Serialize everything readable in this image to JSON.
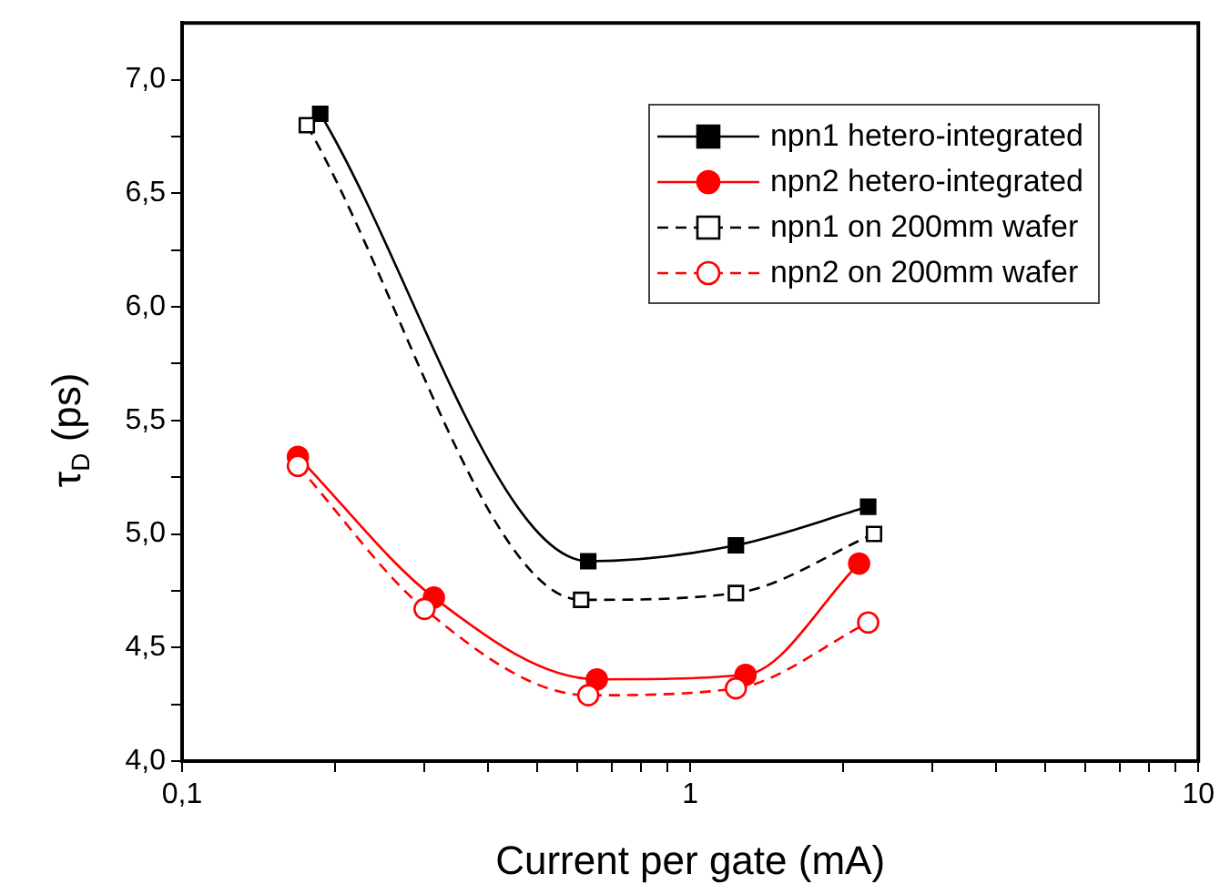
{
  "chart_data": {
    "type": "line",
    "xlabel": "Current per gate (mA)",
    "ylabel": "τ$_{D}$ (ps)",
    "log": "x",
    "xlim": [
      0.1,
      10
    ],
    "ylim": [
      4.0,
      7.25
    ],
    "xticks": [
      {
        "value": 0.1,
        "label": "0,1"
      },
      {
        "value": 0.2,
        "label": null
      },
      {
        "value": 0.3,
        "label": null
      },
      {
        "value": 0.4,
        "label": null
      },
      {
        "value": 0.5,
        "label": null
      },
      {
        "value": 0.6,
        "label": null
      },
      {
        "value": 0.7,
        "label": null
      },
      {
        "value": 0.8,
        "label": null
      },
      {
        "value": 0.9,
        "label": null
      },
      1,
      {
        "value": 2,
        "label": null
      },
      {
        "value": 3,
        "label": null
      },
      {
        "value": 4,
        "label": null
      },
      {
        "value": 5,
        "label": null
      },
      {
        "value": 6,
        "label": null
      },
      {
        "value": 7,
        "label": null
      },
      {
        "value": 8,
        "label": null
      },
      {
        "value": 9,
        "label": null
      },
      10
    ],
    "yticks": [
      {
        "value": 4.0,
        "label": "4,0"
      },
      {
        "value": 4.25,
        "label": null
      },
      {
        "value": 4.5,
        "label": "4,5"
      },
      {
        "value": 4.75,
        "label": null
      },
      {
        "value": 5.0,
        "label": "5,0"
      },
      {
        "value": 5.25,
        "label": null
      },
      {
        "value": 5.5,
        "label": "5,5"
      },
      {
        "value": 5.75,
        "label": null
      },
      {
        "value": 6.0,
        "label": "6,0"
      },
      {
        "value": 6.25,
        "label": null
      },
      {
        "value": 6.5,
        "label": "6,5"
      },
      {
        "value": 6.75,
        "label": null
      },
      {
        "value": 7.0,
        "label": "7,0"
      }
    ],
    "grid": false,
    "legend": "top right",
    "series": [
      {
        "name": "npn1 hetero-integrated",
        "color": "#000000",
        "marker": "square",
        "line_style": "solid",
        "x": [
          0.187,
          0.63,
          1.23,
          2.24
        ],
        "values": [
          6.85,
          4.88,
          4.95,
          5.12
        ]
      },
      {
        "name": "npn2 hetero-integrated",
        "color": "#ff0000",
        "marker": "circle",
        "line_style": "solid",
        "x": [
          0.169,
          0.313,
          0.655,
          1.285,
          2.15
        ],
        "values": [
          5.34,
          4.72,
          4.36,
          4.38,
          4.87
        ]
      },
      {
        "name": "npn1 on 200mm wafer",
        "color": "#000000",
        "marker": "square",
        "line_style": "dashed",
        "x": [
          0.176,
          0.61,
          1.23,
          2.3
        ],
        "values": [
          6.8,
          4.71,
          4.74,
          5.0
        ]
      },
      {
        "name": "npn2 on 200mm wafer",
        "color": "#ff0000",
        "marker": "circle",
        "line_style": "dashed",
        "x": [
          0.169,
          0.3,
          0.63,
          1.23,
          2.24
        ],
        "values": [
          5.3,
          4.67,
          4.29,
          4.32,
          4.61
        ]
      }
    ]
  }
}
